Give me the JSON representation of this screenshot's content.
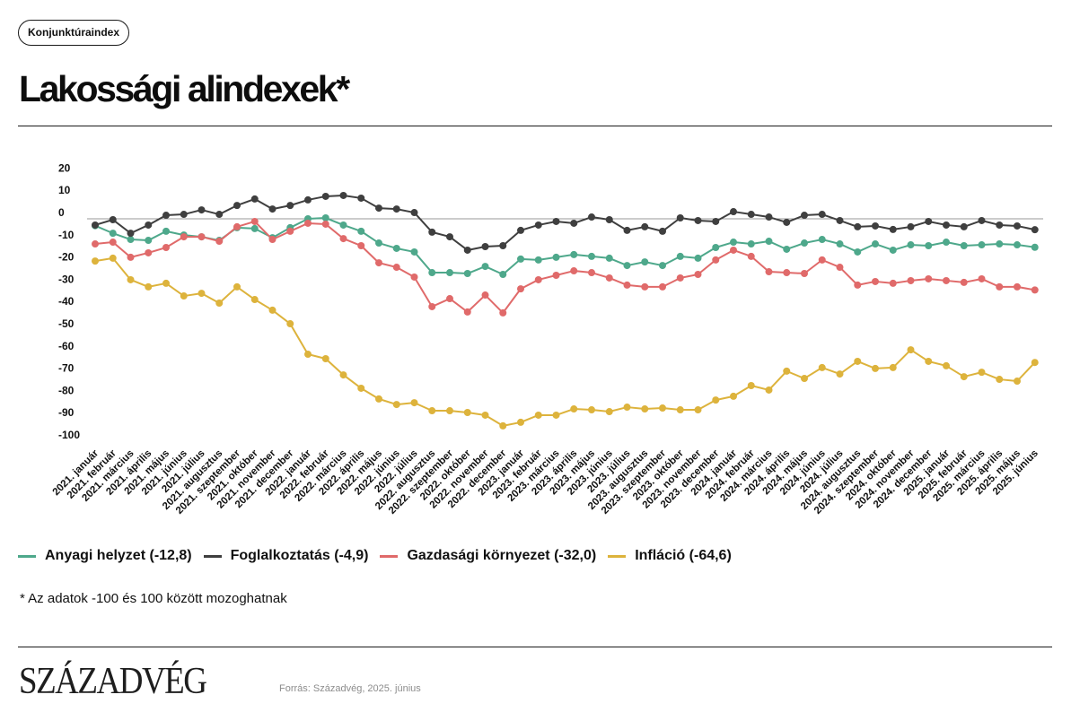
{
  "header": {
    "badge": "Konjunktúraindex"
  },
  "chart_data": {
    "type": "line",
    "title": "Lakossági alindexek*",
    "categories": [
      "2021. január",
      "2021. február",
      "2021. március",
      "2021. április",
      "2021. május",
      "2021. június",
      "2021. július",
      "2021. augusztus",
      "2021. szeptember",
      "2021. október",
      "2021. november",
      "2021. december",
      "2022. január",
      "2022. február",
      "2022. március",
      "2022. április",
      "2022. május",
      "2022. június",
      "2022. július",
      "2022. augusztus",
      "2022. szeptember",
      "2022. október",
      "2022. november",
      "2022. december",
      "2023. január",
      "2023. február",
      "2023. március",
      "2023. április",
      "2023. május",
      "2023. június",
      "2023. július",
      "2023. augusztus",
      "2023. szeptember",
      "2023. október",
      "2023. november",
      "2023. december",
      "2024. január",
      "2024. február",
      "2024. március",
      "2024. április",
      "2024. május",
      "2024. június",
      "2024. július",
      "2024. augusztus",
      "2024. szeptember",
      "2024. október",
      "2024. november",
      "2024. december",
      "2025. január",
      "2025. február",
      "2025. március",
      "2025. április",
      "2025. május",
      "2025. június"
    ],
    "series": [
      {
        "name": "Anyagi helyzet",
        "legend_value": "(-12,8)",
        "color": "#4ea88b",
        "values": [
          -3.1,
          -6.5,
          -9.3,
          -9.7,
          -5.6,
          -7.3,
          -8.1,
          -9.7,
          -4.0,
          -4.4,
          -8.5,
          -4.0,
          0.0,
          0.4,
          -2.8,
          -5.6,
          -10.9,
          -13.3,
          -14.9,
          -24.2,
          -24.2,
          -24.6,
          -21.4,
          -25.0,
          -18.1,
          -18.5,
          -17.3,
          -16.1,
          -16.9,
          -17.7,
          -21.0,
          -19.4,
          -21.0,
          -16.9,
          -17.7,
          -12.9,
          -10.5,
          -11.3,
          -10.1,
          -13.7,
          -10.9,
          -9.3,
          -11.3,
          -14.9,
          -11.3,
          -14.1,
          -11.7,
          -12.1,
          -10.5,
          -12.1,
          -11.7,
          -11.3,
          -11.7,
          -12.8
        ]
      },
      {
        "name": "Foglalkoztatás",
        "legend_value": "(-4,9)",
        "color": "#3f3f3f",
        "values": [
          -2.8,
          -0.4,
          -6.5,
          -2.8,
          1.6,
          2.0,
          4.0,
          2.0,
          6.0,
          8.9,
          4.4,
          6.0,
          8.5,
          10.1,
          10.5,
          9.3,
          4.8,
          4.4,
          2.8,
          -6.0,
          -8.1,
          -14.1,
          -12.5,
          -12.1,
          -5.2,
          -2.8,
          -1.2,
          -2.0,
          0.8,
          -0.4,
          -5.2,
          -3.6,
          -5.6,
          0.4,
          -0.8,
          -1.2,
          3.2,
          2.0,
          0.8,
          -1.6,
          1.6,
          2.0,
          -0.8,
          -3.6,
          -3.2,
          -4.8,
          -3.6,
          -1.2,
          -2.8,
          -3.6,
          -0.8,
          -2.8,
          -3.2,
          -4.9
        ]
      },
      {
        "name": "Gazdasági környezet",
        "legend_value": "(-32,0)",
        "color": "#e06a6a",
        "values": [
          -11.3,
          -10.5,
          -17.3,
          -15.3,
          -12.9,
          -8.1,
          -8.1,
          -10.1,
          -3.6,
          -1.2,
          -9.3,
          -5.6,
          -2.0,
          -2.4,
          -8.9,
          -12.1,
          -19.8,
          -21.8,
          -26.2,
          -39.5,
          -35.9,
          -41.9,
          -34.3,
          -42.3,
          -31.5,
          -27.4,
          -25.4,
          -23.4,
          -24.2,
          -26.6,
          -29.8,
          -30.6,
          -30.6,
          -26.6,
          -25.0,
          -18.5,
          -14.1,
          -16.9,
          -23.8,
          -24.2,
          -24.6,
          -18.5,
          -21.8,
          -29.8,
          -28.2,
          -29.0,
          -27.8,
          -27.0,
          -27.8,
          -28.6,
          -27.0,
          -30.6,
          -30.6,
          -32.0
        ]
      },
      {
        "name": "Infláció",
        "legend_value": "(-64,6)",
        "color": "#ddb33c",
        "values": [
          -19.0,
          -17.7,
          -27.4,
          -30.6,
          -29.0,
          -34.7,
          -33.5,
          -37.9,
          -30.6,
          -36.3,
          -41.1,
          -47.2,
          -60.9,
          -62.9,
          -70.2,
          -76.2,
          -81.0,
          -83.5,
          -82.7,
          -86.3,
          -86.3,
          -87.1,
          -88.3,
          -93.1,
          -91.5,
          -88.3,
          -88.3,
          -85.5,
          -85.9,
          -86.7,
          -84.7,
          -85.5,
          -85.1,
          -85.9,
          -85.9,
          -81.5,
          -79.8,
          -75.0,
          -77.0,
          -68.5,
          -71.8,
          -66.9,
          -69.8,
          -64.1,
          -67.3,
          -66.9,
          -58.9,
          -64.1,
          -66.1,
          -71.0,
          -69.0,
          -72.2,
          -73.0,
          -64.6
        ]
      }
    ],
    "yticks": [
      20,
      10,
      0,
      -10,
      -20,
      -30,
      -40,
      -50,
      -60,
      -70,
      -80,
      -90,
      -100
    ],
    "ylim": [
      -100,
      20
    ],
    "grid": false,
    "legend_position": "bottom-left",
    "footnote": "* Az adatok -100 és 100 között mozoghatnak"
  },
  "footer": {
    "logo_text": "SZÁZADVÉG",
    "source": "Forrás: Századvég, 2025. június"
  }
}
